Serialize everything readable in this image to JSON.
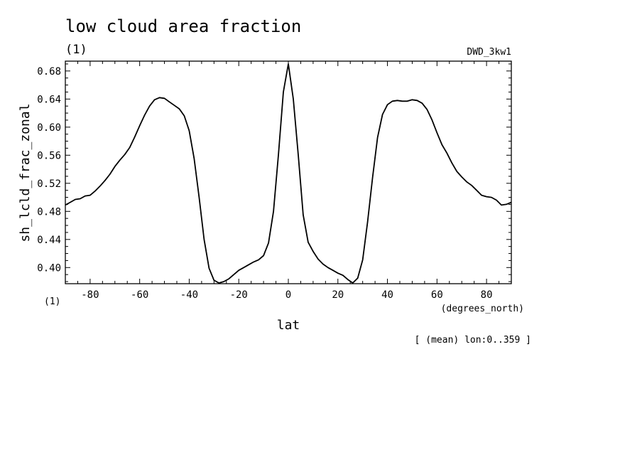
{
  "header": {
    "title": "low cloud area fraction",
    "units_left": "(1)",
    "dataset": "DWD_3kw1"
  },
  "footer": {
    "units_corner": "(1)",
    "x_units": "(degrees_north)",
    "mean_note": "[ (mean) lon:0..359 ]"
  },
  "chart_data": {
    "type": "line",
    "title": "low cloud area fraction",
    "xlabel": "lat",
    "ylabel": "sh_lcld_frac_zonal",
    "xlim": [
      -90,
      90
    ],
    "ylim": [
      0.377,
      0.694
    ],
    "x_ticks": [
      -80,
      -60,
      -40,
      -20,
      0,
      20,
      40,
      60,
      80
    ],
    "x_tick_labels": [
      "-80",
      "-60",
      "-40",
      "-20",
      "0",
      "20",
      "40",
      "60",
      "80"
    ],
    "y_ticks": [
      0.4,
      0.44,
      0.48,
      0.52,
      0.56,
      0.6,
      0.64,
      0.68
    ],
    "y_tick_labels": [
      "0.40",
      "0.44",
      "0.48",
      "0.52",
      "0.56",
      "0.60",
      "0.64",
      "0.68"
    ],
    "grid": false,
    "series": [
      {
        "x": [
          -90,
          -88,
          -86,
          -84,
          -82,
          -80,
          -78,
          -76,
          -74,
          -72,
          -70,
          -68,
          -66,
          -64,
          -62,
          -60,
          -58,
          -56,
          -54,
          -52,
          -50,
          -48,
          -46,
          -44,
          -42,
          -40,
          -38,
          -36,
          -34,
          -32,
          -30,
          -28,
          -26,
          -24,
          -22,
          -20,
          -18,
          -16,
          -14,
          -12,
          -10,
          -8,
          -6,
          -4,
          -2,
          0,
          2,
          4,
          6,
          8,
          10,
          12,
          14,
          16,
          18,
          20,
          22,
          24,
          26,
          28,
          30,
          32,
          34,
          36,
          38,
          40,
          42,
          44,
          46,
          48,
          50,
          52,
          54,
          56,
          58,
          60,
          62,
          64,
          66,
          68,
          70,
          72,
          74,
          76,
          78,
          80,
          82,
          84,
          86,
          88,
          90
        ],
        "values": [
          0.489,
          0.493,
          0.497,
          0.498,
          0.502,
          0.503,
          0.509,
          0.516,
          0.524,
          0.533,
          0.544,
          0.553,
          0.561,
          0.571,
          0.586,
          0.602,
          0.617,
          0.63,
          0.639,
          0.642,
          0.641,
          0.636,
          0.631,
          0.626,
          0.616,
          0.595,
          0.555,
          0.5,
          0.44,
          0.399,
          0.382,
          0.378,
          0.38,
          0.384,
          0.39,
          0.396,
          0.4,
          0.404,
          0.408,
          0.411,
          0.417,
          0.435,
          0.48,
          0.56,
          0.65,
          0.69,
          0.64,
          0.56,
          0.475,
          0.436,
          0.423,
          0.412,
          0.405,
          0.4,
          0.396,
          0.392,
          0.389,
          0.383,
          0.378,
          0.385,
          0.411,
          0.465,
          0.528,
          0.585,
          0.618,
          0.632,
          0.637,
          0.638,
          0.637,
          0.637,
          0.639,
          0.638,
          0.634,
          0.625,
          0.61,
          0.592,
          0.575,
          0.563,
          0.549,
          0.537,
          0.529,
          0.522,
          0.517,
          0.51,
          0.503,
          0.501,
          0.5,
          0.496,
          0.489,
          0.49,
          0.493
        ]
      }
    ]
  }
}
